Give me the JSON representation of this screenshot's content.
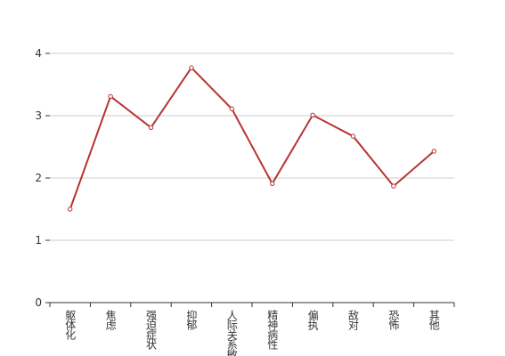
{
  "chart_data": {
    "type": "line",
    "categories": [
      "躯体化",
      "焦虑",
      "强迫症状",
      "抑郁",
      "人际关系敏感",
      "精神病性",
      "偏执",
      "敌对",
      "恐怖",
      "其他"
    ],
    "series": [
      {
        "color": "#b83333",
        "values": [
          1.5,
          3.31,
          2.81,
          3.77,
          3.11,
          1.91,
          3.01,
          2.67,
          1.87,
          2.43
        ]
      }
    ],
    "ylim": [
      0,
      4
    ],
    "yticks": [
      0,
      1,
      2,
      3,
      4
    ],
    "grid": true
  }
}
